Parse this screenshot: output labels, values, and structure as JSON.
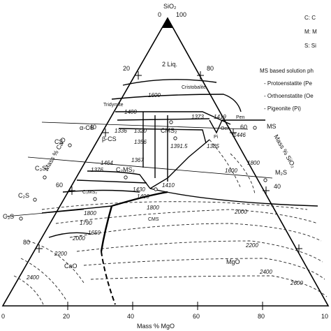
{
  "diagram": {
    "corners": {
      "top": "SiO₂",
      "top_value_left": "0",
      "top_value_right": "100"
    },
    "axes": {
      "left_label": "Mass % CaO",
      "right_label": "Mass % SiO₂",
      "bottom_label": "Mass % MgO",
      "left_ticks": [
        "20",
        "40",
        "60",
        "80"
      ],
      "right_ticks": [
        "80",
        "60",
        "40"
      ],
      "bottom_ticks": [
        "0",
        "20",
        "40",
        "60",
        "80",
        "10"
      ]
    },
    "phase_fields": {
      "liq2": "2 Liq.",
      "tridymite": "Tridymite",
      "cristobalite": "Cristobalite",
      "alpha_cs": "α-CS",
      "beta_cs": "β-CS",
      "cs": "CS",
      "c3s2": "C₃S₂",
      "c2s_upper": "C₂S",
      "c3s": "C₃S",
      "c2ms2": "C₂MS₂",
      "c3ms2": "C₃MS₂",
      "cms2": "CMS₂",
      "cms": "CMS",
      "pen": "Pen",
      "oen": "Oen",
      "pi": "Pi",
      "ms": "MS",
      "m2s": "M₂S",
      "mgo": "MgO",
      "cao": "CaO"
    },
    "isotherms": [
      "1600",
      "1400",
      "1336",
      "1320",
      "1356",
      "1367",
      "1391.5",
      "1373",
      "1419",
      "1446",
      "1385",
      "1464",
      "1376",
      "1430",
      "1490",
      "1410",
      "1600",
      "1800",
      "1790",
      "1650",
      "1800",
      "2000",
      "2000",
      "2200",
      "2400",
      "2400",
      "2200",
      "2600",
      "1800"
    ],
    "legend": {
      "c_line": "C: C",
      "m_line": "M: M",
      "s_line": "S: Si",
      "ms_heading": "MS based solution ph",
      "items": [
        "- Protoenstatite (Pe",
        "- Orthoenstatite (Oe",
        "- Pigeonite (Pi)"
      ]
    }
  }
}
